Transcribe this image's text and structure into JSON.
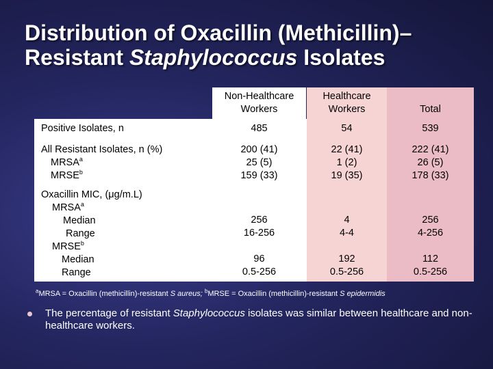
{
  "slide": {
    "title_line1": "Distribution of Oxacillin (Methicillin)–",
    "title_line2_italic": "Staphylococcus",
    "title_line2_pre": "Resistant ",
    "title_line2_post": " Isolates"
  },
  "table": {
    "headers": {
      "col1_line1": "Non-Healthcare",
      "col1_line2": "Workers",
      "col2_line1": "Healthcare",
      "col2_line2": "Workers",
      "col3": "Total"
    },
    "rows": {
      "positive_label": "Positive Isolates, n",
      "positive_vals": [
        "485",
        "54",
        "539"
      ],
      "resistant_label": "All Resistant Isolates, n (%)",
      "resistant_vals": [
        "200 (41)",
        "22 (41)",
        "222 (41)"
      ],
      "mrsa_label": "MRSA",
      "mrsa_sup": "a",
      "mrsa_vals": [
        "25 (5)",
        "1 (2)",
        "26 (5)"
      ],
      "mrse_label": "MRSE",
      "mrse_sup": "b",
      "mrse_vals": [
        "159 (33)",
        "19 (35)",
        "178 (33)"
      ],
      "mic_label": "Oxacillin MIC, (μg/m.L)",
      "mic_mrsa_label": "MRSA",
      "median_label": "Median",
      "range_label": "Range",
      "mic_mrse_label": "MRSE",
      "mrsa_median_vals": [
        "256",
        "4",
        "256"
      ],
      "mrsa_range_vals": [
        "16-256",
        "4-4",
        "4-256"
      ],
      "mrse_median_vals": [
        "96",
        "192",
        "112"
      ],
      "mrse_range_vals": [
        "0.5-256",
        "0.5-256",
        "0.5-256"
      ]
    }
  },
  "footnote": {
    "sup_a": "a",
    "text_a": "MRSA = Oxacillin (methicillin)-resistant ",
    "ital_a": "S aureus;",
    "sup_b": "b",
    "text_b": "MRSE = Oxacillin (methicillin)-resistant ",
    "ital_b": "S epidermidis"
  },
  "bullet": {
    "pre": "The percentage of resistant ",
    "ital": "Staphylococcus",
    "post": " isolates was similar between healthcare and non-healthcare workers."
  }
}
